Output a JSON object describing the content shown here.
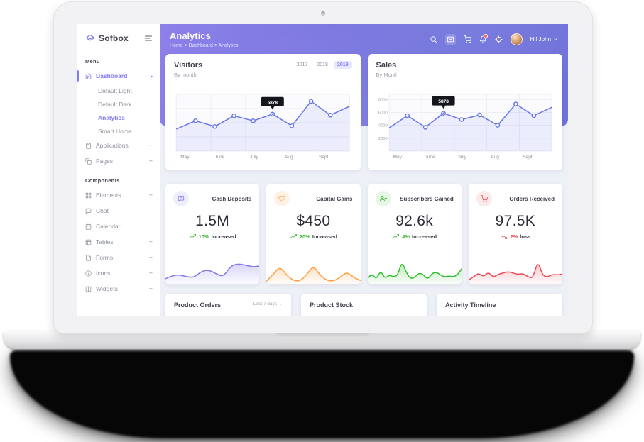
{
  "colors": {
    "primary": "#827af3",
    "banner1": "#8c80e9",
    "banner2": "#7173db",
    "green": "#35b72b",
    "red": "#e94b52",
    "orange": "#ff9f43",
    "line": "#6577e8"
  },
  "sidebar": {
    "brand": "Sofbox",
    "menu_label": "Menu",
    "dashboard": {
      "label": "Dashboard",
      "toggle": "-"
    },
    "dashboard_children": [
      {
        "label": "Default Light"
      },
      {
        "label": "Default Dark"
      },
      {
        "label": "Analytics",
        "active": true
      },
      {
        "label": "Smart Home"
      }
    ],
    "items": [
      {
        "label": "Applications",
        "toggle": "+"
      },
      {
        "label": "Pages",
        "toggle": "+"
      }
    ],
    "components_label": "Components",
    "components": [
      {
        "label": "Elements",
        "toggle": "+"
      },
      {
        "label": "Chat",
        "toggle": ""
      },
      {
        "label": "Calendar",
        "toggle": ""
      },
      {
        "label": "Tables",
        "toggle": "+"
      },
      {
        "label": "Forms",
        "toggle": "+"
      },
      {
        "label": "Icons",
        "toggle": "+"
      },
      {
        "label": "Widgets",
        "toggle": "+"
      }
    ]
  },
  "header": {
    "title": "Analytics",
    "breadcrumb": "Home > Dashboard > Analytics",
    "greeting": "Hi! John",
    "icons": [
      "search",
      "mail",
      "cart",
      "bell",
      "locate"
    ]
  },
  "visitors_card": {
    "years": [
      "2017",
      "2018",
      "2019"
    ],
    "active_year": "2019"
  },
  "stats": [
    {
      "label": "Cash Deposits",
      "value": "1.5M",
      "change": "10%",
      "note": "Increased",
      "trend": "up",
      "icon": "message-icon"
    },
    {
      "label": "Capital Gains",
      "value": "$450",
      "change": "20%",
      "note": "Increased",
      "trend": "up",
      "icon": "heart-icon"
    },
    {
      "label": "Subscribers Gained",
      "value": "92.6k",
      "change": "4%",
      "note": "Increased",
      "trend": "up",
      "icon": "user-plus-icon"
    },
    {
      "label": "Orders Received",
      "value": "97.5K",
      "change": "2%",
      "note": "loss",
      "trend": "down",
      "icon": "cart-icon"
    }
  ],
  "bottom_cards": [
    {
      "title": "Product Orders",
      "filter": "Last 7 days"
    },
    {
      "title": "Product Stock",
      "filter": ""
    },
    {
      "title": "Activity Timeline",
      "filter": ""
    }
  ],
  "chart_data": [
    {
      "id": "visitors",
      "type": "line",
      "title": "Visitors",
      "subtitle": "By month",
      "x_labels": [
        "May",
        "June",
        "July",
        "Aug",
        "Sept"
      ],
      "values": [
        3500,
        4800,
        3900,
        5600,
        4800,
        5878,
        4000,
        7900,
        5700,
        7100
      ],
      "ylim": [
        0,
        9000
      ],
      "tooltip": {
        "index": 5,
        "text": "5878"
      },
      "color": "#6577e8",
      "grid": true,
      "legend": "none"
    },
    {
      "id": "sales",
      "type": "line",
      "title": "Sales",
      "subtitle": "By Month",
      "x_labels": [
        "May",
        "June",
        "July",
        "Aug",
        "Sept"
      ],
      "y_ticks": [
        2000,
        4000,
        6000,
        8000
      ],
      "values": [
        3600,
        5500,
        3700,
        5878,
        4900,
        5600,
        4000,
        7300,
        5500,
        6800
      ],
      "ylim": [
        0,
        8800
      ],
      "tooltip": {
        "index": 3,
        "text": "5878"
      },
      "color": "#6577e8",
      "grid": true,
      "legend": "none"
    },
    {
      "id": "spark0",
      "type": "area",
      "series_label": "Cash Deposits trend",
      "color": "#827af3",
      "values": [
        1.5,
        2.8,
        3.0,
        2.2,
        2.0,
        4.5,
        5.0,
        3.5,
        2.2,
        6.5,
        7.5,
        7.0,
        6.2,
        6.6
      ]
    },
    {
      "id": "spark1",
      "type": "area",
      "series_label": "Capital Gains trend",
      "color": "#ff9f43",
      "values": [
        0.5,
        3,
        6.5,
        3,
        0.8,
        0.5,
        3,
        6.8,
        3,
        0.8,
        0.5,
        2,
        4.2,
        2,
        0.8
      ]
    },
    {
      "id": "spark2",
      "type": "area",
      "series_label": "Subscribers Gained trend",
      "color": "#2ebf2e",
      "values": [
        2,
        3.5,
        1.2,
        4.8,
        1.5,
        3,
        2.2,
        2.8,
        8.5,
        4,
        1.5,
        2,
        3.8,
        3.2,
        1.2,
        3.5,
        4.2,
        3,
        2.2,
        2.6,
        2.2,
        3,
        5.5
      ]
    },
    {
      "id": "spark3",
      "type": "area",
      "series_label": "Orders Received trend",
      "color": "#ef4856",
      "values": [
        1,
        2.2,
        3.8,
        2.2,
        4.2,
        2.0,
        3.3,
        3.8,
        4.3,
        3.8,
        3.2,
        3.6,
        2.2,
        1.6,
        8.8,
        2.6,
        2.2,
        3.2,
        3.0,
        3.4
      ]
    }
  ]
}
